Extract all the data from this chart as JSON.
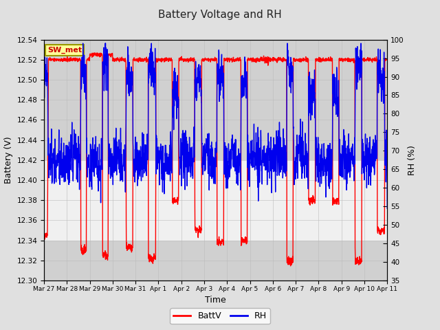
{
  "title": "Battery Voltage and RH",
  "xlabel": "Time",
  "ylabel_left": "Battery (V)",
  "ylabel_right": "RH (%)",
  "label_box": "SW_met",
  "legend_labels": [
    "BattV",
    "RH"
  ],
  "batt_color": "#FF0000",
  "rh_color": "#0000EE",
  "ylim_left": [
    12.3,
    12.54
  ],
  "ylim_right": [
    35,
    100
  ],
  "yticks_left": [
    12.3,
    12.32,
    12.34,
    12.36,
    12.38,
    12.4,
    12.42,
    12.44,
    12.46,
    12.48,
    12.5,
    12.52,
    12.54
  ],
  "yticks_right": [
    35,
    40,
    45,
    50,
    55,
    60,
    65,
    70,
    75,
    80,
    85,
    90,
    95,
    100
  ],
  "x_tick_labels": [
    "Mar 27",
    "Mar 28",
    "Mar 29",
    "Mar 30",
    "Mar 31",
    "Apr 1",
    "Apr 2",
    "Apr 3",
    "Apr 4",
    "Apr 5",
    "Apr 6",
    "Apr 7",
    "Apr 8",
    "Apr 9",
    "Apr 10",
    "Apr 11"
  ],
  "bg_color_outer": "#E0E0E0",
  "bg_color_inner": "#F0F0F0",
  "band_color_dark": "#D0D0D0",
  "linewidth": 1.0,
  "n_days": 15,
  "pts_per_day": 144
}
